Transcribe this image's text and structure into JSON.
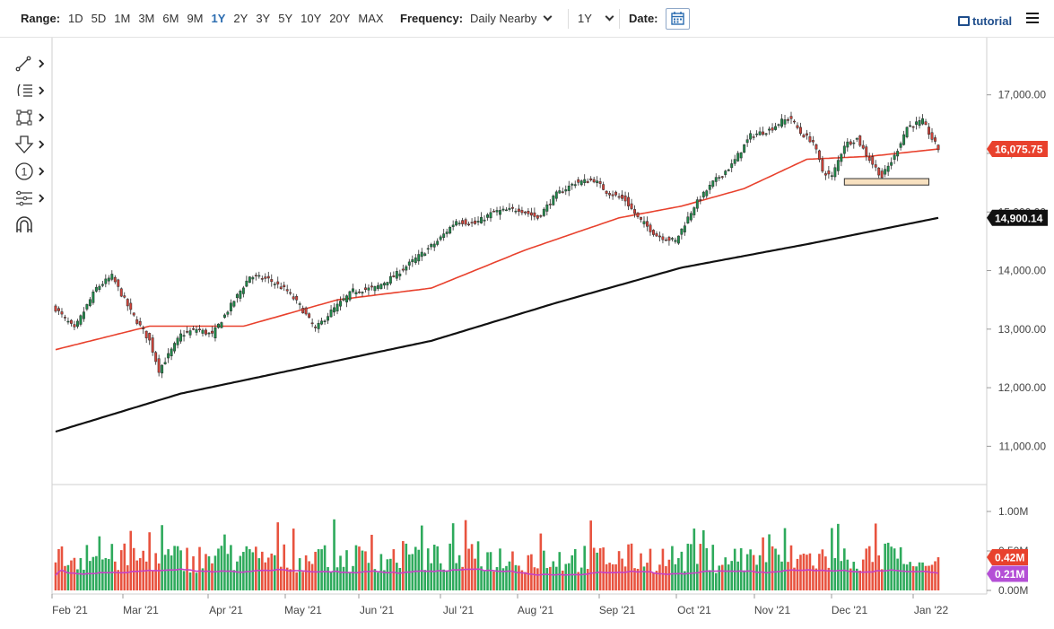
{
  "toolbar": {
    "range_label": "Range:",
    "range_options": [
      "1D",
      "5D",
      "1M",
      "3M",
      "6M",
      "9M",
      "1Y",
      "2Y",
      "3Y",
      "5Y",
      "10Y",
      "20Y",
      "MAX"
    ],
    "range_active": "1Y",
    "frequency_label": "Frequency:",
    "frequency_value": "Daily Nearby",
    "period_value": "1Y",
    "date_label": "Date:",
    "tutorial_label": "tutorial",
    "icons": {
      "date": "calendar-icon",
      "tutorial": "film-icon",
      "menu": "hamburger-menu-icon"
    }
  },
  "tools": [
    {
      "name": "trend-line-tool",
      "icon": "line-draw-icon"
    },
    {
      "name": "fibonacci-tool",
      "icon": "fib-lines-icon"
    },
    {
      "name": "shape-tool",
      "icon": "rectangle-icon"
    },
    {
      "name": "arrow-tool",
      "icon": "down-arrow-icon"
    },
    {
      "name": "annotation-tool",
      "icon": "circle-one-icon"
    },
    {
      "name": "channel-tool",
      "icon": "channel-icon"
    },
    {
      "name": "magnet-tool",
      "icon": "magnet-icon"
    }
  ],
  "chart_data": {
    "type": "candlestick",
    "x_ticks": [
      "Feb '21",
      "Mar '21",
      "Apr '21",
      "May '21",
      "Jun '21",
      "Jul '21",
      "Aug '21",
      "Sep '21",
      "Oct '21",
      "Nov '21",
      "Dec '21",
      "Jan '22"
    ],
    "price_axis": {
      "ylim": [
        10500,
        17700
      ],
      "ticks": [
        "17,000.00",
        "16,000.00",
        "15,000.00",
        "14,000.00",
        "13,000.00",
        "12,000.00",
        "11,000.00"
      ],
      "tick_values": [
        17000,
        16000,
        15000,
        14000,
        13000,
        12000,
        11000
      ]
    },
    "last_price": {
      "label": "16,075.75",
      "value": 16075.75,
      "color": "#e8412d"
    },
    "ma_200_last": {
      "label": "14,900.14",
      "value": 14900.14,
      "color": "#111111"
    },
    "price_path": {
      "months": [
        "Feb '21",
        "Mar '21",
        "Apr '21",
        "May '21",
        "Jun '21",
        "Jul '21",
        "Aug '21",
        "Sep '21",
        "Oct '21",
        "Nov '21",
        "Dec '21",
        "Jan '22"
      ],
      "anchor_values": [
        [
          0,
          13350
        ],
        [
          6,
          13000
        ],
        [
          13,
          13700
        ],
        [
          18,
          13900
        ],
        [
          24,
          13300
        ],
        [
          30,
          12800
        ],
        [
          33,
          12300
        ],
        [
          36,
          12550
        ],
        [
          40,
          12900
        ],
        [
          45,
          13000
        ],
        [
          50,
          12900
        ],
        [
          56,
          13400
        ],
        [
          62,
          13900
        ],
        [
          68,
          13850
        ],
        [
          74,
          13650
        ],
        [
          78,
          13400
        ],
        [
          83,
          13000
        ],
        [
          88,
          13300
        ],
        [
          95,
          13650
        ],
        [
          102,
          13700
        ],
        [
          108,
          13900
        ],
        [
          115,
          14200
        ],
        [
          122,
          14500
        ],
        [
          128,
          14850
        ],
        [
          134,
          14800
        ],
        [
          140,
          15000
        ],
        [
          148,
          15050
        ],
        [
          154,
          14900
        ],
        [
          160,
          15300
        ],
        [
          166,
          15500
        ],
        [
          172,
          15550
        ],
        [
          176,
          15350
        ],
        [
          182,
          15200
        ],
        [
          186,
          14900
        ],
        [
          192,
          14600
        ],
        [
          198,
          14500
        ],
        [
          204,
          15100
        ],
        [
          210,
          15500
        ],
        [
          216,
          15800
        ],
        [
          222,
          16300
        ],
        [
          228,
          16400
        ],
        [
          232,
          16550
        ],
        [
          235,
          16600
        ],
        [
          238,
          16350
        ],
        [
          242,
          16200
        ],
        [
          245,
          15700
        ],
        [
          248,
          15600
        ],
        [
          252,
          16150
        ],
        [
          256,
          16250
        ],
        [
          260,
          15900
        ],
        [
          264,
          15600
        ],
        [
          268,
          15950
        ],
        [
          272,
          16450
        ],
        [
          277,
          16550
        ],
        [
          280,
          16250
        ],
        [
          282,
          16075.75
        ]
      ]
    },
    "ma_50": {
      "color": "#e8412d",
      "anchor_values": [
        [
          0,
          12650
        ],
        [
          30,
          13050
        ],
        [
          60,
          13050
        ],
        [
          90,
          13500
        ],
        [
          120,
          13700
        ],
        [
          150,
          14350
        ],
        [
          180,
          14900
        ],
        [
          200,
          15100
        ],
        [
          220,
          15400
        ],
        [
          240,
          15900
        ],
        [
          260,
          15950
        ],
        [
          282,
          16075
        ]
      ]
    },
    "ma_200": {
      "color": "#111111",
      "anchor_values": [
        [
          0,
          11250
        ],
        [
          40,
          11900
        ],
        [
          80,
          12350
        ],
        [
          120,
          12800
        ],
        [
          160,
          13450
        ],
        [
          200,
          14050
        ],
        [
          240,
          14450
        ],
        [
          282,
          14900
        ]
      ]
    },
    "highlight_box": {
      "from_index": 252,
      "to_index": 279,
      "y_low": 15460,
      "y_high": 15570,
      "color": "#f8e1c0"
    },
    "volume": {
      "ylim": [
        0,
        1.25
      ],
      "ticks": [
        "1.00M",
        "0.50M",
        "0.00M"
      ],
      "tick_values": [
        1.0,
        0.5,
        0.0
      ],
      "last_volume": {
        "label": "0.42M",
        "value": 0.42,
        "color": "#e8412d"
      },
      "avg_volume": {
        "label": "0.21M",
        "value": 0.21,
        "color": "#b44fd6"
      },
      "up_color": "#2eaa5c",
      "down_color": "#e8533f",
      "ma_color": "#c640c6"
    },
    "candle_up_color": "#1f8a4a",
    "candle_down_color": "#d0433a"
  }
}
